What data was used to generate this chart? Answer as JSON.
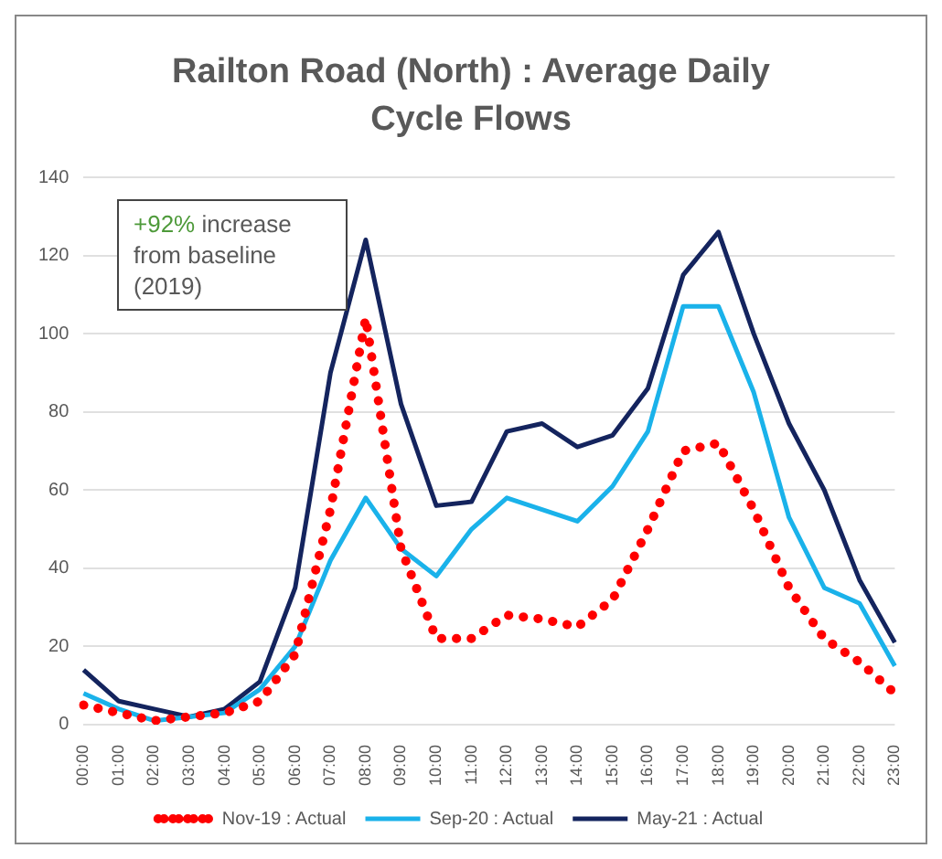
{
  "chart_data": {
    "type": "line",
    "title": "Railton Road (North) : Average Daily Cycle Flows",
    "categories": [
      "00:00",
      "01:00",
      "02:00",
      "03:00",
      "04:00",
      "05:00",
      "06:00",
      "07:00",
      "08:00",
      "09:00",
      "10:00",
      "11:00",
      "12:00",
      "13:00",
      "14:00",
      "15:00",
      "16:00",
      "17:00",
      "18:00",
      "19:00",
      "20:00",
      "21:00",
      "22:00",
      "23:00"
    ],
    "series": [
      {
        "name": "Nov-19 : Actual",
        "color": "#ff0000",
        "line_style": "dotted",
        "values": [
          5,
          3,
          1,
          2,
          3,
          6,
          18,
          55,
          104,
          45,
          22,
          22,
          28,
          27,
          25,
          32,
          50,
          70,
          72,
          55,
          35,
          22,
          16,
          8
        ]
      },
      {
        "name": "Sep-20 : Actual",
        "color": "#1ab2ea",
        "line_style": "solid",
        "values": [
          8,
          4,
          1,
          2,
          3,
          9,
          20,
          42,
          58,
          45,
          38,
          50,
          58,
          55,
          52,
          61,
          75,
          107,
          107,
          85,
          53,
          35,
          31,
          15
        ]
      },
      {
        "name": "May-21 : Actual",
        "color": "#14245e",
        "line_style": "solid",
        "values": [
          14,
          6,
          4,
          2,
          4,
          11,
          35,
          90,
          124,
          82,
          56,
          57,
          75,
          77,
          71,
          74,
          86,
          115,
          126,
          100,
          77,
          60,
          37,
          21
        ]
      }
    ],
    "ylim": [
      0,
      140
    ],
    "yticks": [
      0,
      20,
      40,
      60,
      80,
      100,
      120,
      140
    ],
    "grid": "y",
    "legend": "bottom",
    "marker": "none",
    "annotations": [
      "+92% increase from baseline (2019)"
    ]
  }
}
